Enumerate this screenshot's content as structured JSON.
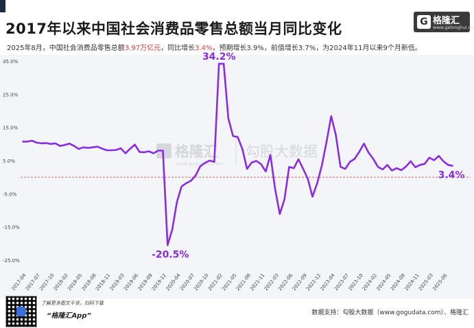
{
  "header": {
    "title": "2017年以来中国社会消费品零售总额当月同比变化",
    "logo_mark": "G",
    "logo_name": "格隆汇",
    "logo_url": "www.gelonghui.com"
  },
  "subtitle": {
    "part1": "2025年8月，中国社会消费品零售总额",
    "value_total": "3.97万亿元",
    "part2": "，同比增长",
    "value_yoy": "3.4%",
    "part3": "，预期增长3.9%，前值增长3.7%，为2024年11月以来9个月新低。"
  },
  "watermark": {
    "a": "格隆汇",
    "b": "勾股大数据",
    "c": "www.gogudata.com"
  },
  "footer": {
    "promo": "了解更多图文干货，扫码下载",
    "app": "“格隆汇App”",
    "source": "数据支持：勾股大数据（www.gogudata.com）、格隆汇"
  },
  "colors": {
    "line": "#8a2be2",
    "label": "#8a2be2",
    "zero_line": "#d9534f",
    "plot_bg": "#f3f5f8"
  },
  "chart_data": {
    "type": "line",
    "title": "2017年以来中国社会消费品零售总额当月同比变化",
    "xlabel": "",
    "ylabel": "",
    "ylim": [
      -25,
      35
    ],
    "yticks": [
      "35.0%",
      "25.0%",
      "15.0%",
      "5.0%",
      "-5.0%",
      "-15.0%",
      "-25.0%"
    ],
    "ytick_values": [
      35,
      25,
      15,
      5,
      -5,
      -15,
      -25
    ],
    "x_tick_labels": [
      "2017-04",
      "2017-07",
      "2017-10",
      "2018-02",
      "2018-05",
      "2018-08",
      "2018-11",
      "2019-03",
      "2019-06",
      "2019-09",
      "2019-12",
      "2020-04",
      "2020-07",
      "2020-10",
      "2021-02",
      "2021-05",
      "2021-08",
      "2021-11",
      "2022-03",
      "2022-06",
      "2022-09",
      "2022-12",
      "2023-04",
      "2023-07",
      "2023-10",
      "2024-02",
      "2024-05",
      "2024-08",
      "2024-11",
      "2025-03",
      "2025-06"
    ],
    "series": [
      {
        "values": [
          10.7,
          10.7,
          11.0,
          10.4,
          10.2,
          10.3,
          10.0,
          10.2,
          9.4,
          9.7,
          10.1,
          9.4,
          8.5,
          9.0,
          8.8,
          9.0,
          9.2,
          8.6,
          8.1,
          8.1,
          8.2,
          8.7,
          7.2,
          8.6,
          9.8,
          7.6,
          7.5,
          7.8,
          7.2,
          8.0,
          8.0,
          -20.5,
          -15.8,
          -7.5,
          -2.8,
          -1.8,
          -1.1,
          0.5,
          3.3,
          4.3,
          5.0,
          4.6,
          34.2,
          34.2,
          17.7,
          12.4,
          12.1,
          8.5,
          2.5,
          4.4,
          4.9,
          3.9,
          1.7,
          6.7,
          -3.5,
          -11.1,
          -6.7,
          3.1,
          2.7,
          5.4,
          2.5,
          -0.5,
          -5.9,
          -1.8,
          3.5,
          10.6,
          18.4,
          12.7,
          3.1,
          2.5,
          4.6,
          5.5,
          7.6,
          10.1,
          7.4,
          5.5,
          3.1,
          2.3,
          3.7,
          2.0,
          2.7,
          2.1,
          3.2,
          4.8,
          3.0,
          3.7,
          4.0,
          5.9,
          5.1,
          6.4,
          4.8,
          3.7,
          3.4
        ]
      }
    ],
    "annotations": [
      {
        "text": "34.2%",
        "index": 42
      },
      {
        "text": "-20.5%",
        "index": 31
      },
      {
        "text": "3.4%",
        "index": 92
      }
    ],
    "zero_line": "dashed",
    "grid": false
  }
}
